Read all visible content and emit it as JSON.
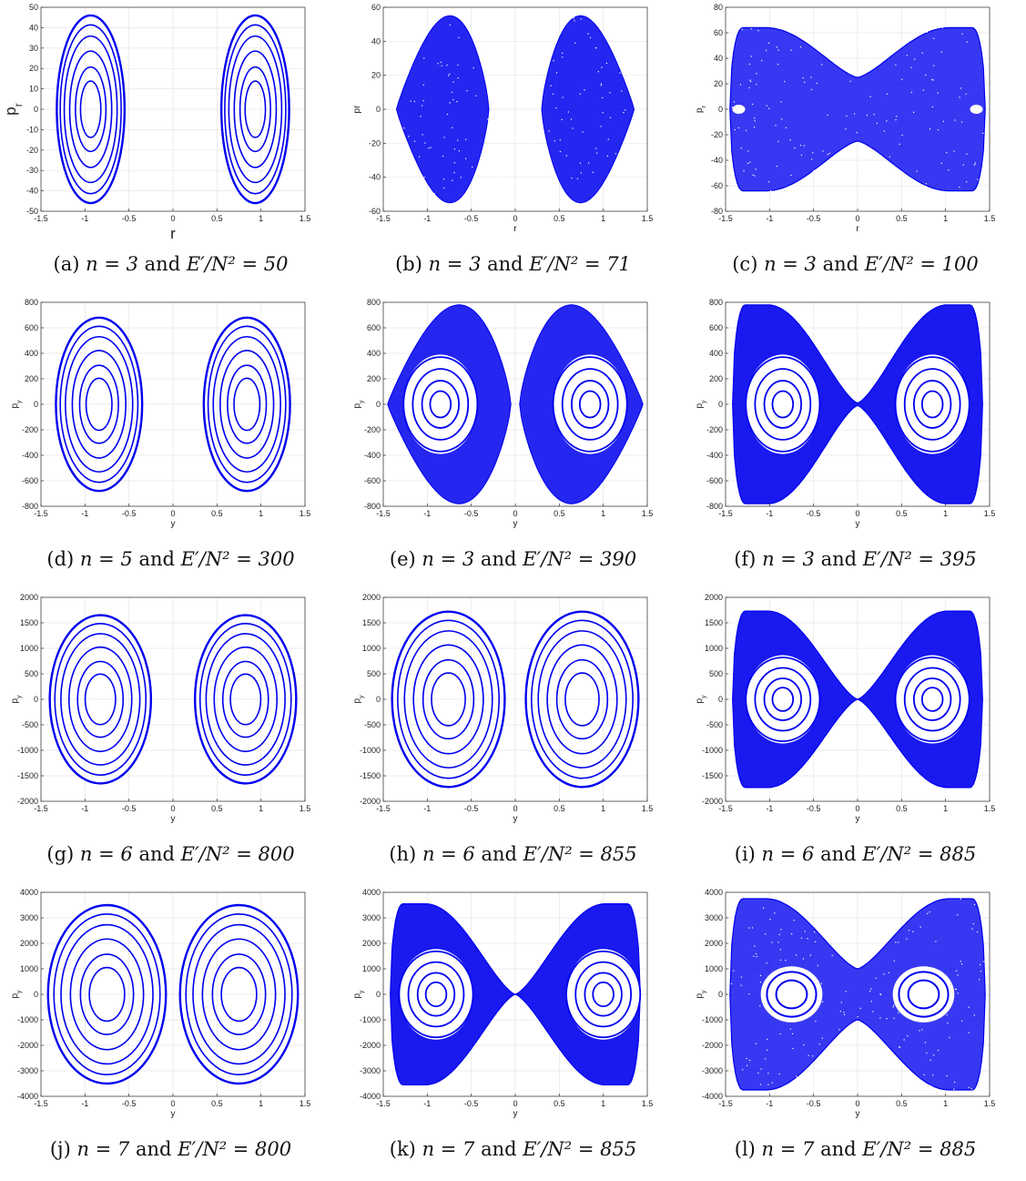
{
  "figure": {
    "panels": [
      {
        "id": "a",
        "caption": {
          "tag": "(a)",
          "n": "n = 3",
          "energy": "E′/N² = 50"
        }
      },
      {
        "id": "b",
        "caption": {
          "tag": "(b)",
          "n": "n = 3",
          "energy": "E′/N² = 71"
        }
      },
      {
        "id": "c",
        "caption": {
          "tag": "(c)",
          "n": "n = 3",
          "energy": "E′/N² = 100"
        }
      },
      {
        "id": "d",
        "caption": {
          "tag": "(d)",
          "n": "n = 5",
          "energy": "E′/N² = 300"
        }
      },
      {
        "id": "e",
        "caption": {
          "tag": "(e)",
          "n": "n = 3",
          "energy": "E′/N² = 390"
        }
      },
      {
        "id": "f",
        "caption": {
          "tag": "(f)",
          "n": "n = 3",
          "energy": "E′/N² = 395"
        }
      },
      {
        "id": "g",
        "caption": {
          "tag": "(g)",
          "n": "n = 6",
          "energy": "E′/N² = 800"
        }
      },
      {
        "id": "h",
        "caption": {
          "tag": "(h)",
          "n": "n = 6",
          "energy": "E′/N² = 855"
        }
      },
      {
        "id": "i",
        "caption": {
          "tag": "(i)",
          "n": "n = 6",
          "energy": "E′/N² = 885"
        }
      },
      {
        "id": "j",
        "caption": {
          "tag": "(j)",
          "n": "n = 7",
          "energy": "E′/N² = 800"
        }
      },
      {
        "id": "k",
        "caption": {
          "tag": "(k)",
          "n": "n = 7",
          "energy": "E′/N² = 855"
        }
      },
      {
        "id": "l",
        "caption": {
          "tag": "(l)",
          "n": "n = 7",
          "energy": "E′/N² = 885"
        }
      }
    ]
  },
  "chart_data": [
    {
      "id": "a",
      "type": "scatter",
      "xlabel": "r",
      "ylabel": "p_r",
      "xlim": [
        -1.5,
        1.5
      ],
      "ylim": [
        -50,
        50
      ],
      "xticks": [
        -1.5,
        -1,
        -0.5,
        0,
        0.5,
        1,
        1.5
      ],
      "yticks": [
        -50,
        -40,
        -30,
        -20,
        -10,
        0,
        10,
        20,
        30,
        40,
        50
      ],
      "regime": "regular",
      "pattern": "two-islands",
      "centers": [
        -0.95,
        0.95
      ],
      "pmax": 46,
      "x_extent": [
        0.55,
        1.32
      ],
      "color": "#0000ee",
      "grid": true
    },
    {
      "id": "b",
      "type": "scatter",
      "xlabel": "r",
      "ylabel": "pr",
      "xlim": [
        -1.5,
        1.5
      ],
      "ylim": [
        -60,
        60
      ],
      "xticks": [
        -1.5,
        -1,
        -0.5,
        0,
        0.5,
        1,
        1.5
      ],
      "yticks": [
        -60,
        -40,
        -20,
        0,
        20,
        40,
        60
      ],
      "regime": "chaotic",
      "pattern": "two-lobes",
      "centers": [
        -0.95,
        0.95
      ],
      "pmax": 55,
      "x_extent": [
        0.3,
        1.35
      ],
      "color": "#0000ee",
      "grid": true
    },
    {
      "id": "c",
      "type": "scatter",
      "xlabel": "r",
      "ylabel": "p_r",
      "xlim": [
        -1.5,
        1.5
      ],
      "ylim": [
        -80,
        80
      ],
      "xticks": [
        -1.5,
        -1,
        -0.5,
        0,
        0.5,
        1,
        1.5
      ],
      "yticks": [
        -80,
        -60,
        -40,
        -20,
        0,
        20,
        40,
        60,
        80
      ],
      "regime": "chaotic",
      "pattern": "bowtie",
      "centers": [
        -1,
        1
      ],
      "pmax": 64,
      "waist": 25,
      "x_extent": [
        0,
        1.45
      ],
      "color": "#0000ee",
      "grid": true
    },
    {
      "id": "d",
      "type": "scatter",
      "xlabel": "y",
      "ylabel": "p_y",
      "xlim": [
        -1.5,
        1.5
      ],
      "ylim": [
        -800,
        800
      ],
      "xticks": [
        -1.5,
        -1,
        -0.5,
        0,
        0.5,
        1,
        1.5
      ],
      "yticks": [
        -800,
        -600,
        -400,
        -200,
        0,
        200,
        400,
        600,
        800
      ],
      "regime": "regular",
      "pattern": "two-islands",
      "centers": [
        -0.9,
        0.9
      ],
      "pmax": 680,
      "x_extent": [
        0.35,
        1.33
      ],
      "color": "#0000ee",
      "grid": true
    },
    {
      "id": "e",
      "type": "scatter",
      "xlabel": "y",
      "ylabel": "p_y",
      "xlim": [
        -1.5,
        1.5
      ],
      "ylim": [
        -800,
        800
      ],
      "xticks": [
        -1.5,
        -1,
        -0.5,
        0,
        0.5,
        1,
        1.5
      ],
      "yticks": [
        -800,
        -600,
        -400,
        -200,
        0,
        200,
        400,
        600,
        800
      ],
      "regime": "mixed",
      "pattern": "two-lobes",
      "centers": [
        -0.85,
        0.85
      ],
      "pmax": 780,
      "x_extent": [
        0.05,
        1.45
      ],
      "color": "#0000ee",
      "grid": true
    },
    {
      "id": "f",
      "type": "scatter",
      "xlabel": "y",
      "ylabel": "p_y",
      "xlim": [
        -1.5,
        1.5
      ],
      "ylim": [
        -800,
        800
      ],
      "xticks": [
        -1.5,
        -1,
        -0.5,
        0,
        0.5,
        1,
        1.5
      ],
      "yticks": [
        -800,
        -600,
        -400,
        -200,
        0,
        200,
        400,
        600,
        800
      ],
      "regime": "mixed",
      "pattern": "bowtie",
      "centers": [
        -0.85,
        0.85
      ],
      "pmax": 780,
      "waist": 10,
      "x_extent": [
        0,
        1.42
      ],
      "color": "#0000ee",
      "grid": true
    },
    {
      "id": "g",
      "type": "scatter",
      "xlabel": "y",
      "ylabel": "p_y",
      "xlim": [
        -1.5,
        1.5
      ],
      "ylim": [
        -2000,
        2000
      ],
      "xticks": [
        -1.5,
        -1,
        -0.5,
        0,
        0.5,
        1,
        1.5
      ],
      "yticks": [
        -2000,
        -1500,
        -1000,
        -500,
        0,
        500,
        1000,
        1500,
        2000
      ],
      "regime": "regular",
      "pattern": "two-islands",
      "centers": [
        -0.9,
        0.9
      ],
      "pmax": 1650,
      "x_extent": [
        0.25,
        1.4
      ],
      "color": "#0000ee",
      "grid": true
    },
    {
      "id": "h",
      "type": "scatter",
      "xlabel": "y",
      "ylabel": "p_y",
      "xlim": [
        -1.5,
        1.5
      ],
      "ylim": [
        -2000,
        2000
      ],
      "xticks": [
        -1.5,
        -1,
        -0.5,
        0,
        0.5,
        1,
        1.5
      ],
      "yticks": [
        -2000,
        -1500,
        -1000,
        -500,
        0,
        500,
        1000,
        1500,
        2000
      ],
      "regime": "regular",
      "pattern": "two-lobes",
      "centers": [
        -0.9,
        0.85
      ],
      "pmax": 1720,
      "x_extent": [
        0.12,
        1.4
      ],
      "color": "#0000ee",
      "grid": true
    },
    {
      "id": "i",
      "type": "scatter",
      "xlabel": "y",
      "ylabel": "p_y",
      "xlim": [
        -1.5,
        1.5
      ],
      "ylim": [
        -2000,
        2000
      ],
      "xticks": [
        -1.5,
        -1,
        -0.5,
        0,
        0.5,
        1,
        1.5
      ],
      "yticks": [
        -2000,
        -1500,
        -1000,
        -500,
        0,
        500,
        1000,
        1500,
        2000
      ],
      "regime": "mixed",
      "pattern": "bowtie",
      "centers": [
        -0.85,
        0.85
      ],
      "pmax": 1730,
      "waist": 0,
      "x_extent": [
        0,
        1.42
      ],
      "color": "#0000ee",
      "grid": true
    },
    {
      "id": "j",
      "type": "scatter",
      "xlabel": "y",
      "ylabel": "p_y",
      "xlim": [
        -1.5,
        1.5
      ],
      "ylim": [
        -4000,
        4000
      ],
      "xticks": [
        -1.5,
        -1,
        -0.5,
        0,
        0.5,
        1,
        1.5
      ],
      "yticks": [
        -4000,
        -3000,
        -2000,
        -1000,
        0,
        1000,
        2000,
        3000,
        4000
      ],
      "regime": "regular",
      "pattern": "two-lobes",
      "centers": [
        -0.85,
        0.9
      ],
      "pmax": 3500,
      "x_extent": [
        0.08,
        1.42
      ],
      "color": "#0000ee",
      "grid": true
    },
    {
      "id": "k",
      "type": "scatter",
      "xlabel": "y",
      "ylabel": "p_y",
      "xlim": [
        -1.5,
        1.5
      ],
      "ylim": [
        -4000,
        4000
      ],
      "xticks": [
        -1.5,
        -1,
        -0.5,
        0,
        0.5,
        1,
        1.5
      ],
      "yticks": [
        -4000,
        -3000,
        -2000,
        -1000,
        0,
        1000,
        2000,
        3000,
        4000
      ],
      "regime": "mixed",
      "pattern": "bowtie",
      "centers": [
        -0.9,
        1
      ],
      "pmax": 3550,
      "waist": 0,
      "x_extent": [
        0,
        1.42
      ],
      "color": "#0000ee",
      "grid": true
    },
    {
      "id": "l",
      "type": "scatter",
      "xlabel": "y",
      "ylabel": "p_y",
      "xlim": [
        -1.5,
        1.5
      ],
      "ylim": [
        -4000,
        4000
      ],
      "xticks": [
        -1.5,
        -1,
        -0.5,
        0,
        0.5,
        1,
        1.5
      ],
      "yticks": [
        -4000,
        -3000,
        -2000,
        -1000,
        0,
        1000,
        2000,
        3000,
        4000
      ],
      "regime": "chaotic",
      "pattern": "bowtie",
      "centers": [
        -0.75,
        0.75
      ],
      "pmax": 3750,
      "waist": 1000,
      "x_extent": [
        0,
        1.45
      ],
      "color": "#0000ee",
      "grid": true
    }
  ]
}
